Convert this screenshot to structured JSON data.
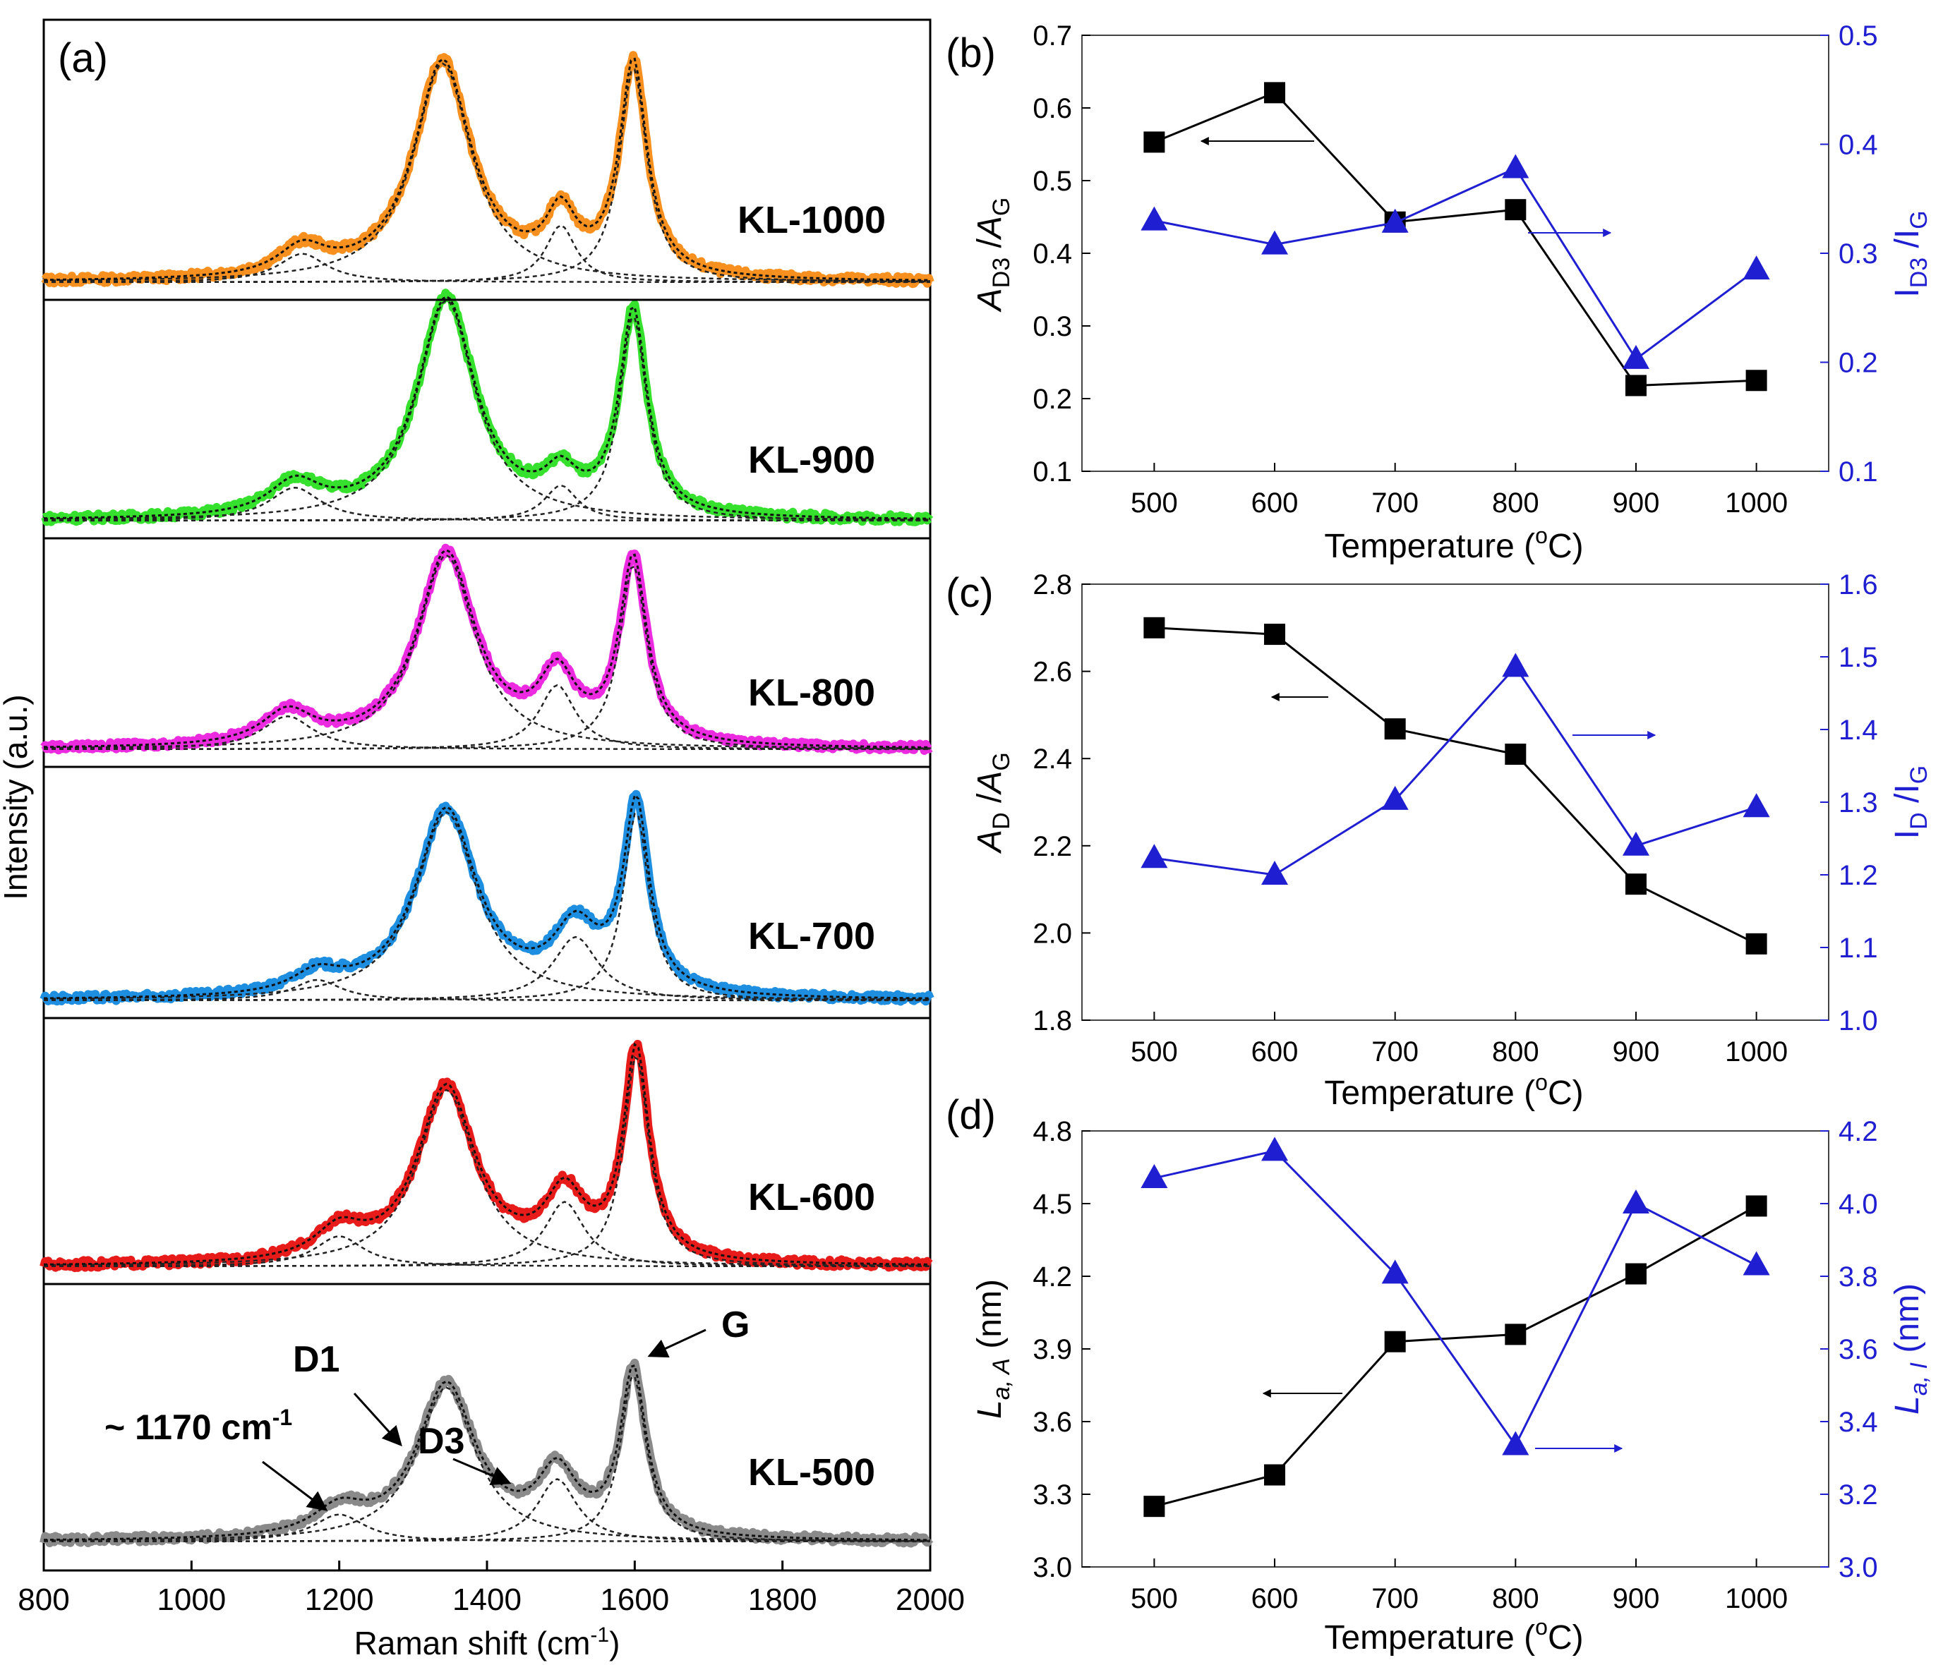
{
  "figure": {
    "description_labels": [
      "(a)",
      "(b)",
      "(c)",
      "(d)"
    ]
  },
  "chart_data": [
    {
      "id": "a",
      "type": "line",
      "panel_label": "(a)",
      "title": "",
      "xlabel": "Raman shift (cm-1)",
      "xlabel_main": "Raman shift (cm",
      "xlabel_sup": "-1",
      "xlabel_tail": ")",
      "ylabel": "Intensity (a.u.)",
      "xlim": [
        800,
        2000
      ],
      "xticks": [
        800,
        1000,
        1200,
        1400,
        1600,
        1800,
        2000
      ],
      "colors": {
        "KL-1000": "#f7901e",
        "KL-900": "#35e12d",
        "KL-800": "#ec2be0",
        "KL-700": "#1e8ee0",
        "KL-600": "#e81b1b",
        "KL-500": "#8a8a8a"
      },
      "series": [
        {
          "name": "KL-1000",
          "color": "#f7901e",
          "peaks": [
            {
              "label": "~1170",
              "center": 1150,
              "width": 80,
              "height": 0.13
            },
            {
              "label": "D1",
              "center": 1340,
              "width": 95,
              "height": 1.0
            },
            {
              "label": "D3",
              "center": 1500,
              "width": 50,
              "height": 0.26
            },
            {
              "label": "G",
              "center": 1598,
              "width": 45,
              "height": 0.98
            }
          ]
        },
        {
          "name": "KL-900",
          "color": "#35e12d",
          "peaks": [
            {
              "label": "~1170",
              "center": 1140,
              "width": 85,
              "height": 0.15
            },
            {
              "label": "D1",
              "center": 1345,
              "width": 95,
              "height": 1.0
            },
            {
              "label": "D3",
              "center": 1500,
              "width": 55,
              "height": 0.16
            },
            {
              "label": "G",
              "center": 1598,
              "width": 45,
              "height": 0.93
            }
          ]
        },
        {
          "name": "KL-800",
          "color": "#ec2be0",
          "peaks": [
            {
              "label": "~1170",
              "center": 1130,
              "width": 85,
              "height": 0.17
            },
            {
              "label": "D1",
              "center": 1345,
              "width": 95,
              "height": 1.0
            },
            {
              "label": "D3",
              "center": 1495,
              "width": 60,
              "height": 0.33
            },
            {
              "label": "G",
              "center": 1598,
              "width": 45,
              "height": 0.95
            }
          ]
        },
        {
          "name": "KL-700",
          "color": "#1e8ee0",
          "peaks": [
            {
              "label": "~1170",
              "center": 1170,
              "width": 80,
              "height": 0.1
            },
            {
              "label": "D1",
              "center": 1345,
              "width": 100,
              "height": 0.92
            },
            {
              "label": "D3",
              "center": 1520,
              "width": 75,
              "height": 0.31
            },
            {
              "label": "G",
              "center": 1602,
              "width": 42,
              "height": 0.92
            }
          ]
        },
        {
          "name": "KL-600",
          "color": "#e81b1b",
          "peaks": [
            {
              "label": "~1170",
              "center": 1200,
              "width": 80,
              "height": 0.14
            },
            {
              "label": "D1",
              "center": 1345,
              "width": 95,
              "height": 0.82
            },
            {
              "label": "D3",
              "center": 1505,
              "width": 65,
              "height": 0.3
            },
            {
              "label": "G",
              "center": 1602,
              "width": 42,
              "height": 0.98
            }
          ]
        },
        {
          "name": "KL-500",
          "color": "#8a8a8a",
          "peaks": [
            {
              "label": "~1170",
              "center": 1200,
              "width": 85,
              "height": 0.13
            },
            {
              "label": "D1",
              "center": 1345,
              "width": 95,
              "height": 0.74
            },
            {
              "label": "D3",
              "center": 1495,
              "width": 65,
              "height": 0.3
            },
            {
              "label": "G",
              "center": 1598,
              "width": 42,
              "height": 0.8
            }
          ]
        }
      ],
      "annotations": {
        "d1": "D1",
        "g": "G",
        "d3": "D3",
        "shoulder_main": "~ 1170 cm",
        "shoulder_sup": "-1"
      }
    },
    {
      "id": "b",
      "type": "scatter",
      "panel_label": "(b)",
      "xlabel": "Temperature (oC)",
      "x": [
        500,
        600,
        700,
        800,
        900,
        1000
      ],
      "xlim": [
        440,
        1060
      ],
      "ylim_left": [
        0.1,
        0.7
      ],
      "ylim_right": [
        0.1,
        0.5
      ],
      "left_ticks": [
        "0.1",
        "0.2",
        "0.3",
        "0.4",
        "0.5",
        "0.6",
        "0.7"
      ],
      "right_ticks": [
        "0.1",
        "0.2",
        "0.3",
        "0.4",
        "0.5"
      ],
      "ylabel_left": "AD3/AG",
      "ylabel_right": "ID3/IG",
      "series": [
        {
          "name": "AD3/AG",
          "axis": "left",
          "color": "#000000",
          "marker": "square",
          "values": [
            0.553,
            0.621,
            0.443,
            0.46,
            0.218,
            0.225
          ]
        },
        {
          "name": "ID3/IG",
          "axis": "right",
          "color": "#1f1fd1",
          "marker": "triangle",
          "values": [
            0.33,
            0.308,
            0.328,
            0.378,
            0.203,
            0.285
          ]
        }
      ]
    },
    {
      "id": "c",
      "type": "scatter",
      "panel_label": "(c)",
      "xlabel": "Temperature (oC)",
      "x": [
        500,
        600,
        700,
        800,
        900,
        1000
      ],
      "xlim": [
        440,
        1060
      ],
      "ylim_left": [
        1.8,
        2.8
      ],
      "ylim_right": [
        1.0,
        1.6
      ],
      "left_ticks": [
        "1.8",
        "2.0",
        "2.2",
        "2.4",
        "2.6",
        "2.8"
      ],
      "right_ticks": [
        "1.0",
        "1.1",
        "1.2",
        "1.3",
        "1.4",
        "1.5",
        "1.6"
      ],
      "ylabel_left": "AD/AG",
      "ylabel_right": "ID/IG",
      "series": [
        {
          "name": "AD/AG",
          "axis": "left",
          "color": "#000000",
          "marker": "square",
          "values": [
            2.7,
            2.685,
            2.468,
            2.41,
            2.112,
            1.975
          ]
        },
        {
          "name": "ID/IG",
          "axis": "right",
          "color": "#1f1fd1",
          "marker": "triangle",
          "values": [
            1.223,
            1.2,
            1.303,
            1.486,
            1.24,
            1.293
          ]
        }
      ]
    },
    {
      "id": "d",
      "type": "scatter",
      "panel_label": "(d)",
      "xlabel": "Temperature (oC)",
      "x": [
        500,
        600,
        700,
        800,
        900,
        1000
      ],
      "xlim": [
        440,
        1060
      ],
      "ylim_left": [
        3.0,
        4.8
      ],
      "ylim_right": [
        3.0,
        4.2
      ],
      "left_ticks": [
        "3.0",
        "3.3",
        "3.6",
        "3.9",
        "4.2",
        "4.5",
        "4.8"
      ],
      "right_ticks": [
        "3.0",
        "3.2",
        "3.4",
        "3.6",
        "3.8",
        "4.0",
        "4.2"
      ],
      "ylabel_left": "La,A (nm)",
      "ylabel_right": "La,I (nm)",
      "series": [
        {
          "name": "La,A",
          "axis": "left",
          "color": "#000000",
          "marker": "square",
          "values": [
            3.25,
            3.38,
            3.93,
            3.96,
            4.21,
            4.49
          ]
        },
        {
          "name": "La,I",
          "axis": "right",
          "color": "#1f1fd1",
          "marker": "triangle",
          "values": [
            4.07,
            4.145,
            3.807,
            3.335,
            4.0,
            3.83
          ]
        }
      ]
    }
  ]
}
